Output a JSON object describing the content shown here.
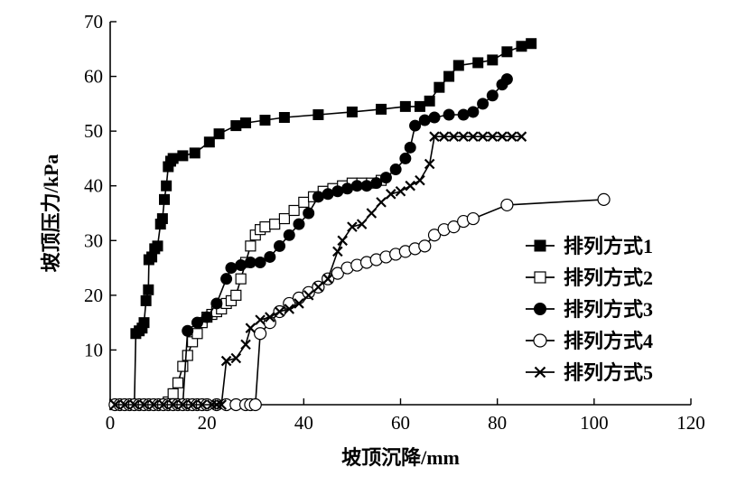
{
  "chart_data": {
    "type": "line",
    "xlabel": "坡顶沉降/mm",
    "ylabel": "坡顶压力/kPa",
    "xlim": [
      0,
      120
    ],
    "ylim": [
      0,
      70
    ],
    "x_ticks": [
      0,
      20,
      40,
      60,
      80,
      100,
      120
    ],
    "y_ticks": [
      10,
      20,
      30,
      40,
      50,
      60,
      70
    ],
    "grid": false,
    "legend_position": "right",
    "series": [
      {
        "name": "排列方式1",
        "marker": "filled-square",
        "points": [
          [
            1,
            0
          ],
          [
            2,
            0
          ],
          [
            3,
            0
          ],
          [
            4,
            0
          ],
          [
            5,
            0
          ],
          [
            5.3,
            13
          ],
          [
            6,
            13.5
          ],
          [
            6.6,
            14
          ],
          [
            7,
            15
          ],
          [
            7.4,
            19
          ],
          [
            7.9,
            21
          ],
          [
            8,
            26.5
          ],
          [
            8.6,
            27
          ],
          [
            9.2,
            28.5
          ],
          [
            9.8,
            29
          ],
          [
            10.4,
            33
          ],
          [
            10.8,
            34
          ],
          [
            11.2,
            37.5
          ],
          [
            11.6,
            40
          ],
          [
            12,
            43.5
          ],
          [
            12.5,
            44.5
          ],
          [
            13,
            45
          ],
          [
            15,
            45.5
          ],
          [
            17.5,
            46
          ],
          [
            20.5,
            48
          ],
          [
            22.5,
            49.5
          ],
          [
            26,
            51
          ],
          [
            28,
            51.5
          ],
          [
            32,
            52
          ],
          [
            36,
            52.5
          ],
          [
            43,
            53
          ],
          [
            50,
            53.5
          ],
          [
            56,
            54
          ],
          [
            61,
            54.5
          ],
          [
            64,
            54.5
          ],
          [
            66,
            55.5
          ],
          [
            68,
            58
          ],
          [
            70,
            60
          ],
          [
            72,
            62
          ],
          [
            76,
            62.5
          ],
          [
            79,
            63
          ],
          [
            82,
            64.5
          ],
          [
            85,
            65.5
          ],
          [
            87,
            66
          ]
        ]
      },
      {
        "name": "排列方式2",
        "marker": "open-square",
        "points": [
          [
            1,
            0
          ],
          [
            2,
            0
          ],
          [
            3,
            0
          ],
          [
            4,
            0
          ],
          [
            5,
            0
          ],
          [
            6,
            0
          ],
          [
            7,
            0
          ],
          [
            8,
            0
          ],
          [
            9,
            0
          ],
          [
            10,
            0
          ],
          [
            11,
            0
          ],
          [
            12,
            0.5
          ],
          [
            13,
            2
          ],
          [
            14,
            4
          ],
          [
            15,
            7
          ],
          [
            16,
            9
          ],
          [
            17,
            11.5
          ],
          [
            18,
            13
          ],
          [
            19,
            15
          ],
          [
            20,
            16
          ],
          [
            21,
            16.5
          ],
          [
            22,
            17
          ],
          [
            23,
            17.5
          ],
          [
            24,
            18.5
          ],
          [
            25,
            19
          ],
          [
            26,
            20
          ],
          [
            27,
            23
          ],
          [
            28,
            26
          ],
          [
            29,
            29
          ],
          [
            30,
            31
          ],
          [
            31,
            32
          ],
          [
            32,
            32.5
          ],
          [
            34,
            33
          ],
          [
            36,
            34
          ],
          [
            38,
            35.5
          ],
          [
            40,
            37
          ],
          [
            42,
            38
          ],
          [
            44,
            39
          ],
          [
            46,
            39.5
          ],
          [
            48,
            40
          ],
          [
            50,
            40.5
          ],
          [
            52,
            40.5
          ],
          [
            54,
            40.5
          ],
          [
            56,
            41
          ]
        ]
      },
      {
        "name": "排列方式3",
        "marker": "filled-circle",
        "points": [
          [
            1,
            0
          ],
          [
            2,
            0
          ],
          [
            3,
            0
          ],
          [
            4,
            0
          ],
          [
            5,
            0
          ],
          [
            6,
            0
          ],
          [
            7,
            0
          ],
          [
            8,
            0
          ],
          [
            9,
            0
          ],
          [
            10,
            0
          ],
          [
            11,
            0
          ],
          [
            12,
            0
          ],
          [
            13,
            0
          ],
          [
            14,
            0
          ],
          [
            15,
            0
          ],
          [
            16,
            13.5
          ],
          [
            18,
            15
          ],
          [
            20,
            16
          ],
          [
            22,
            18.5
          ],
          [
            24,
            23
          ],
          [
            25,
            25
          ],
          [
            27,
            25.5
          ],
          [
            29,
            26
          ],
          [
            31,
            26
          ],
          [
            33,
            27
          ],
          [
            35,
            29
          ],
          [
            37,
            31
          ],
          [
            39,
            33
          ],
          [
            41,
            35
          ],
          [
            43,
            38
          ],
          [
            45,
            38.5
          ],
          [
            47,
            39
          ],
          [
            49,
            39.5
          ],
          [
            51,
            40
          ],
          [
            53,
            40
          ],
          [
            55,
            40.5
          ],
          [
            57,
            41.5
          ],
          [
            59,
            43
          ],
          [
            61,
            45
          ],
          [
            62,
            47
          ],
          [
            63,
            51
          ],
          [
            65,
            52
          ],
          [
            67,
            52.5
          ],
          [
            70,
            53
          ],
          [
            73,
            53
          ],
          [
            75,
            53.5
          ],
          [
            77,
            55
          ],
          [
            79,
            56.5
          ],
          [
            81,
            58.5
          ],
          [
            82,
            59.5
          ]
        ]
      },
      {
        "name": "排列方式4",
        "marker": "open-circle",
        "points": [
          [
            1,
            0
          ],
          [
            2,
            0
          ],
          [
            3,
            0
          ],
          [
            4,
            0
          ],
          [
            5,
            0
          ],
          [
            6,
            0
          ],
          [
            7,
            0
          ],
          [
            8,
            0
          ],
          [
            9,
            0
          ],
          [
            10,
            0
          ],
          [
            11,
            0
          ],
          [
            12,
            0
          ],
          [
            13,
            0
          ],
          [
            14,
            0
          ],
          [
            15,
            0
          ],
          [
            16,
            0
          ],
          [
            17,
            0
          ],
          [
            18,
            0
          ],
          [
            19,
            0
          ],
          [
            20,
            0
          ],
          [
            22,
            0
          ],
          [
            24,
            0
          ],
          [
            26,
            0
          ],
          [
            28,
            0
          ],
          [
            29,
            0
          ],
          [
            30,
            0
          ],
          [
            31,
            13
          ],
          [
            33,
            15
          ],
          [
            35,
            17
          ],
          [
            37,
            18.5
          ],
          [
            39,
            19.5
          ],
          [
            41,
            20.5
          ],
          [
            43,
            21.5
          ],
          [
            45,
            23
          ],
          [
            47,
            24
          ],
          [
            49,
            25
          ],
          [
            51,
            25.5
          ],
          [
            53,
            26
          ],
          [
            55,
            26.5
          ],
          [
            57,
            27
          ],
          [
            59,
            27.5
          ],
          [
            61,
            28
          ],
          [
            63,
            28.5
          ],
          [
            65,
            29
          ],
          [
            67,
            31
          ],
          [
            69,
            32
          ],
          [
            71,
            32.5
          ],
          [
            73,
            33.5
          ],
          [
            75,
            34
          ],
          [
            82,
            36.5
          ],
          [
            102,
            37.5
          ]
        ]
      },
      {
        "name": "排列方式5",
        "marker": "x",
        "points": [
          [
            1,
            0
          ],
          [
            3,
            0
          ],
          [
            5,
            0
          ],
          [
            7,
            0
          ],
          [
            9,
            0
          ],
          [
            11,
            0
          ],
          [
            13,
            0
          ],
          [
            15,
            0
          ],
          [
            17,
            0
          ],
          [
            19,
            0
          ],
          [
            21,
            0
          ],
          [
            22,
            0
          ],
          [
            23,
            0
          ],
          [
            24,
            8
          ],
          [
            26,
            8.5
          ],
          [
            28,
            11
          ],
          [
            29,
            14
          ],
          [
            31,
            15.5
          ],
          [
            33,
            16
          ],
          [
            35,
            17
          ],
          [
            37,
            17.5
          ],
          [
            39,
            18.5
          ],
          [
            41,
            20
          ],
          [
            43,
            21.5
          ],
          [
            45,
            23
          ],
          [
            47,
            28
          ],
          [
            48,
            30
          ],
          [
            50,
            32.5
          ],
          [
            52,
            33
          ],
          [
            54,
            35
          ],
          [
            56,
            37
          ],
          [
            58,
            38.5
          ],
          [
            60,
            39
          ],
          [
            62,
            40
          ],
          [
            64,
            41
          ],
          [
            66,
            44
          ],
          [
            67,
            49
          ],
          [
            69,
            49
          ],
          [
            71,
            49
          ],
          [
            73,
            49
          ],
          [
            75,
            49
          ],
          [
            77,
            49
          ],
          [
            79,
            49
          ],
          [
            81,
            49
          ],
          [
            83,
            49
          ],
          [
            85,
            49
          ]
        ]
      }
    ]
  }
}
